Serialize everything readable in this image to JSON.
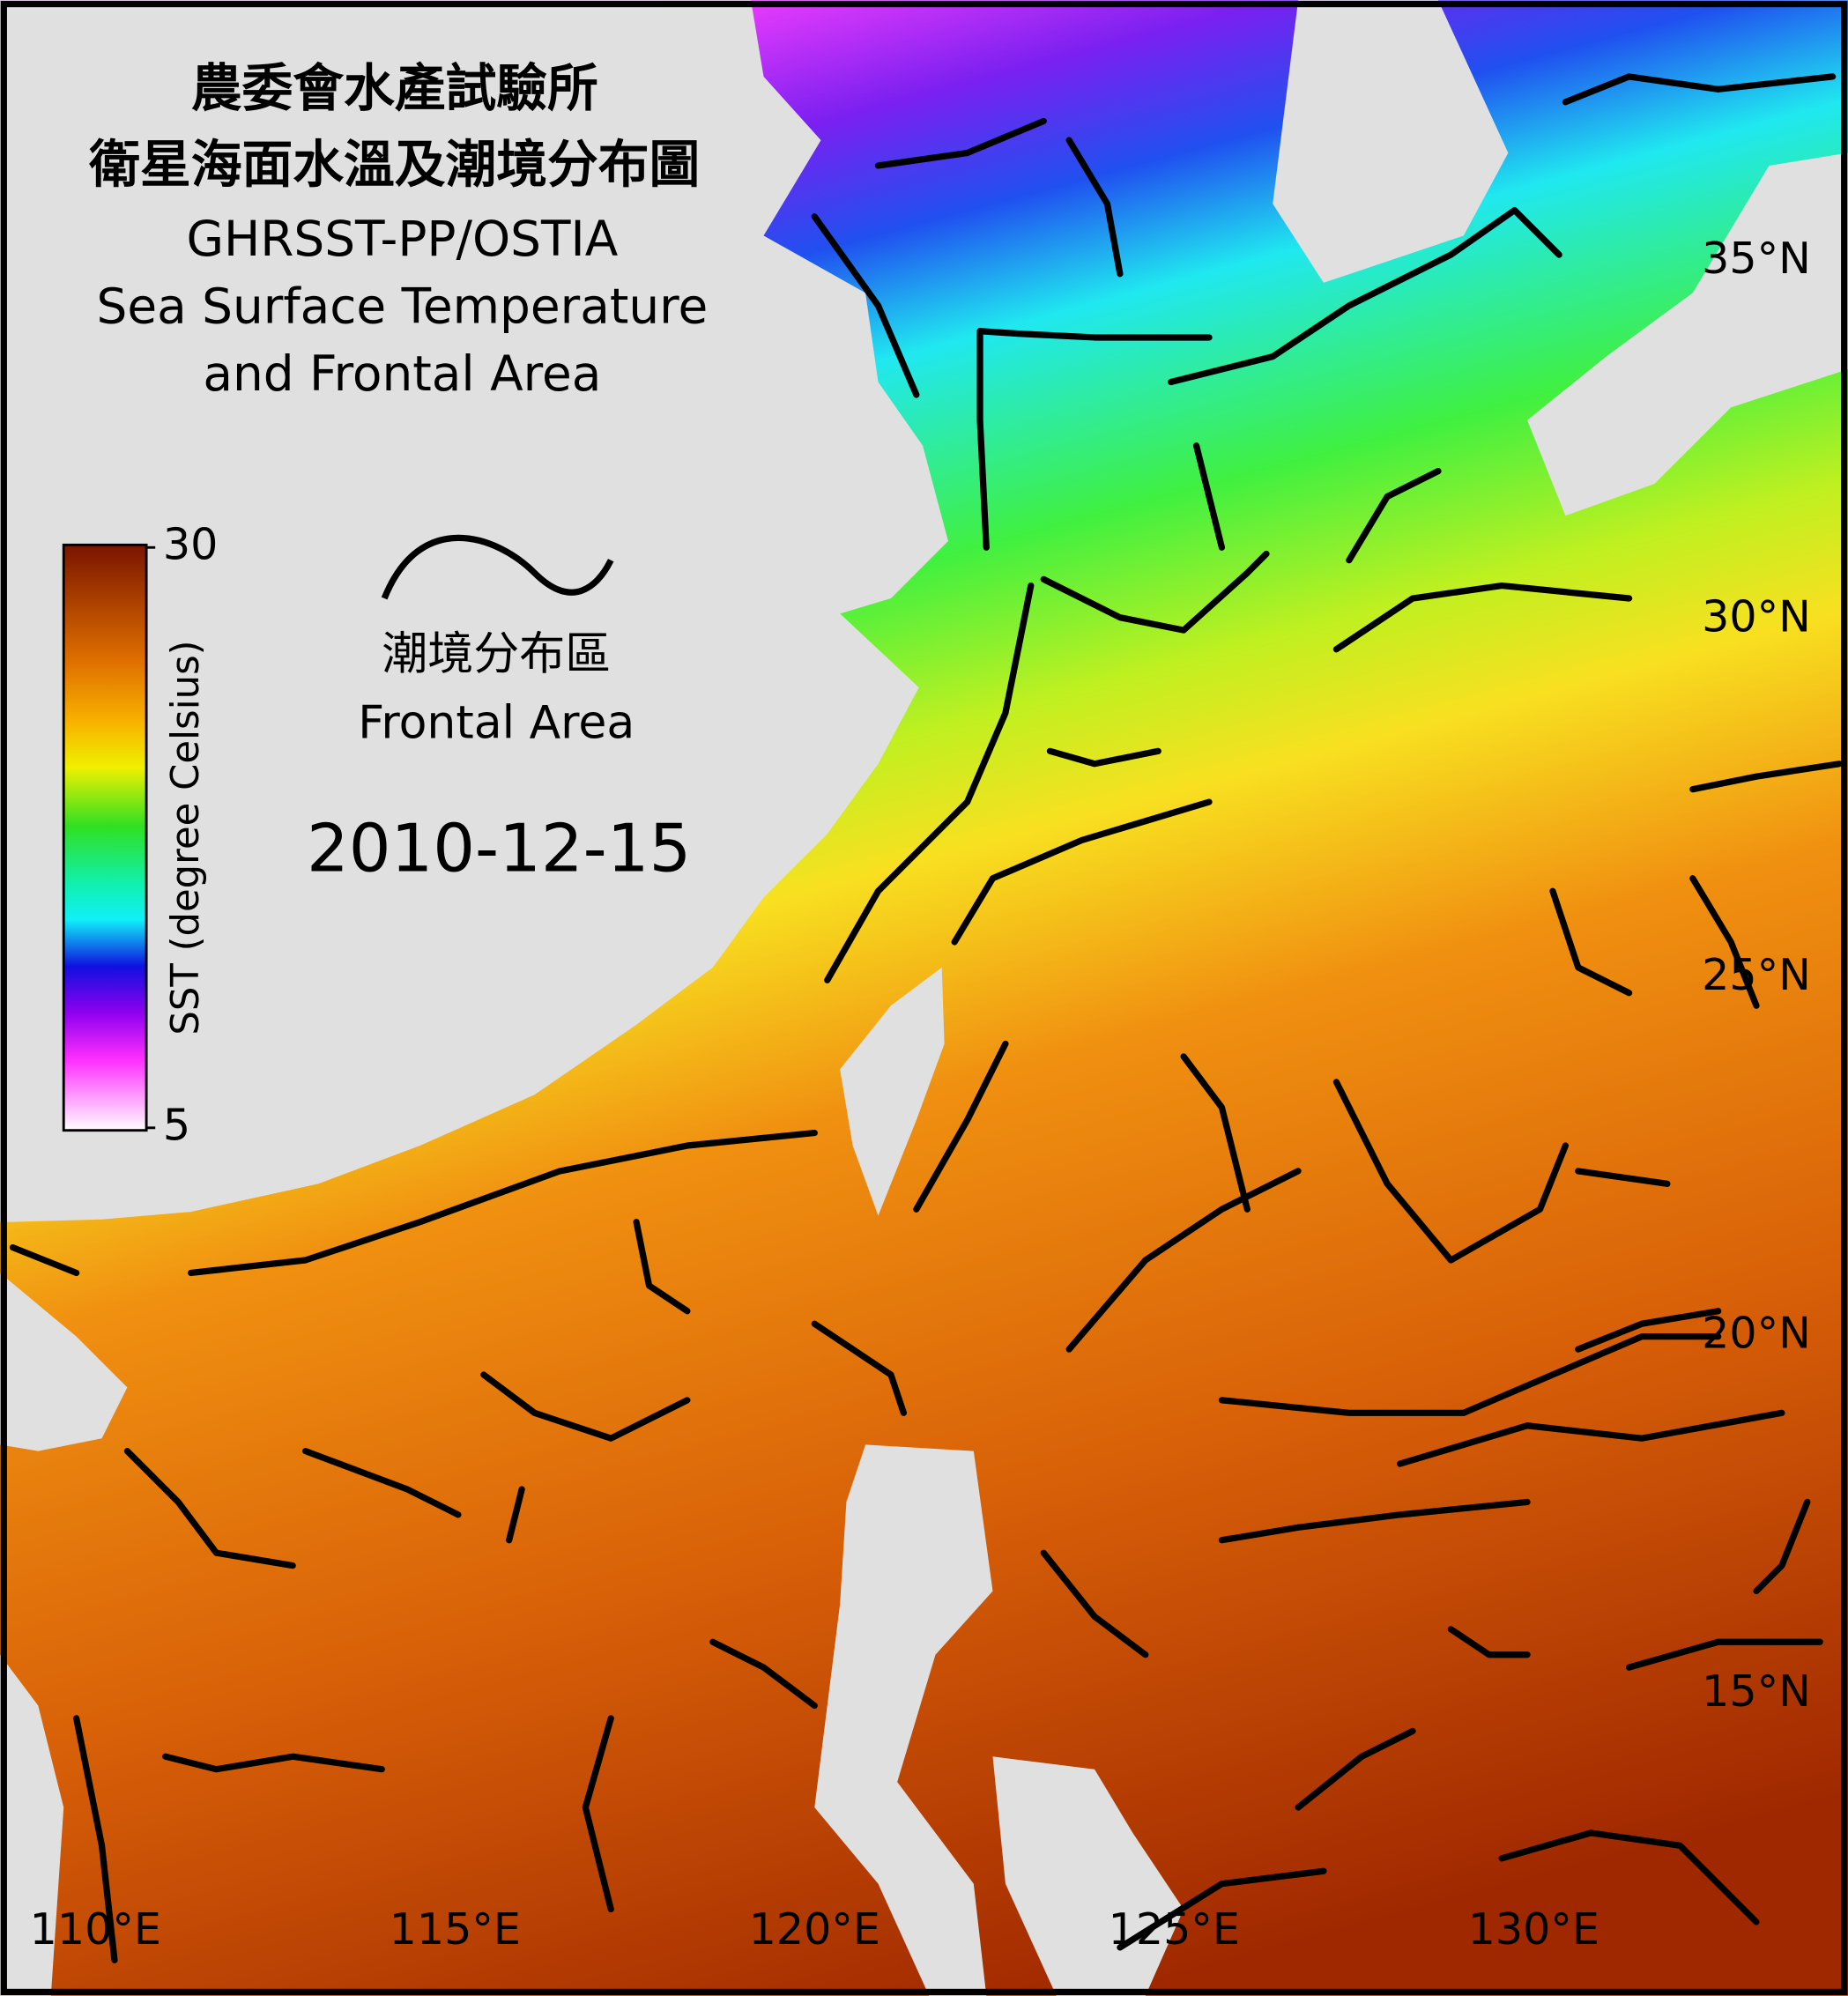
{
  "title": {
    "chinese_lines": [
      "農委會水產試驗所",
      "衛星海面水溫及潮境分布圖"
    ],
    "english_lines": [
      "GHRSST-PP/OSTIA",
      "Sea Surface Temperature",
      "and Frontal Area"
    ]
  },
  "legend": {
    "chinese": "潮境分布區",
    "english": "Frontal Area"
  },
  "date": "2010-12-15",
  "colorbar": {
    "label": "SST (degree Celsius)",
    "range": [
      5,
      30
    ],
    "ticks": [
      5,
      30
    ]
  },
  "lat_ticks": [
    {
      "value": 35,
      "label": "35°N"
    },
    {
      "value": 30,
      "label": "30°N"
    },
    {
      "value": 25,
      "label": "25°N"
    },
    {
      "value": 20,
      "label": "20°N"
    },
    {
      "value": 15,
      "label": "15°N"
    }
  ],
  "lon_ticks": [
    {
      "value": 110,
      "label": "110°E"
    },
    {
      "value": 115,
      "label": "115°E"
    },
    {
      "value": 120,
      "label": "120°E"
    },
    {
      "value": 125,
      "label": "125°E"
    },
    {
      "value": 130,
      "label": "130°E"
    }
  ]
}
